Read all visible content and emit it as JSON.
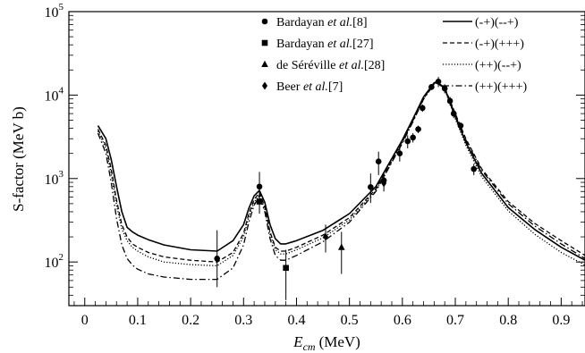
{
  "chart_data": {
    "type": "scatter",
    "xlabel": {
      "var": "E",
      "sub": "cm",
      "unit": "(MeV)"
    },
    "ylabel": "S-factor (MeV b)",
    "xlim": [
      -0.03,
      0.945
    ],
    "ylim": [
      30,
      100000
    ],
    "yscale": "log",
    "x_ticks": [
      0,
      0.1,
      0.2,
      0.3,
      0.4,
      0.5,
      0.6,
      0.7,
      0.8,
      0.9
    ],
    "x_tick_labels": [
      "0",
      "0.1",
      "0.2",
      "0.3",
      "0.4",
      "0.5",
      "0.6",
      "0.7",
      "0.8",
      "0.9"
    ],
    "y_ticks": [
      100,
      1000,
      10000,
      100000
    ],
    "y_tick_labels": [
      {
        "base": "10",
        "exp": "2"
      },
      {
        "base": "10",
        "exp": "3"
      },
      {
        "base": "10",
        "exp": "4"
      },
      {
        "base": "10",
        "exp": "5"
      }
    ],
    "grid": false,
    "legend_position": "top",
    "data_series": [
      {
        "legend": {
          "pre": "Bardayan ",
          "italic": "et al.",
          "post": "[8]"
        },
        "marker": "circle",
        "points": [
          {
            "x": 0.25,
            "y": 110,
            "ylo": 50,
            "yhi": 240
          },
          {
            "x": 0.33,
            "y": 800,
            "ylo": 520,
            "yhi": 1200
          },
          {
            "x": 0.54,
            "y": 790,
            "ylo": 510,
            "yhi": 1150
          },
          {
            "x": 0.555,
            "y": 1600,
            "ylo": 1100,
            "yhi": 2100
          },
          {
            "x": 0.565,
            "y": 950,
            "ylo": 800,
            "yhi": 1120
          },
          {
            "x": 0.595,
            "y": 2000,
            "ylo": 1600,
            "yhi": 2500
          },
          {
            "x": 0.61,
            "y": 2800,
            "ylo": 2300,
            "yhi": 3300
          },
          {
            "x": 0.62,
            "y": 3100,
            "ylo": 2700,
            "yhi": 3500
          },
          {
            "x": 0.63,
            "y": 3900,
            "ylo": 3500,
            "yhi": 4300
          },
          {
            "x": 0.638,
            "y": 7000,
            "ylo": 6300,
            "yhi": 7700
          },
          {
            "x": 0.655,
            "y": 12500,
            "ylo": 11500,
            "yhi": 13500
          },
          {
            "x": 0.668,
            "y": 14500,
            "ylo": 12500,
            "yhi": 16500
          },
          {
            "x": 0.68,
            "y": 12000,
            "ylo": 10500,
            "yhi": 13500
          },
          {
            "x": 0.69,
            "y": 8500,
            "ylo": 7500,
            "yhi": 9500
          },
          {
            "x": 0.697,
            "y": 6000,
            "ylo": 5300,
            "yhi": 6700
          },
          {
            "x": 0.71,
            "y": 4300,
            "ylo": 3900,
            "yhi": 4700
          },
          {
            "x": 0.735,
            "y": 1300,
            "ylo": 1100,
            "yhi": 1500
          }
        ]
      },
      {
        "legend": {
          "pre": "Bardayan ",
          "italic": "et al.",
          "post": "[27]"
        },
        "marker": "square",
        "points": [
          {
            "x": 0.33,
            "y": 530,
            "ylo": 380,
            "yhi": 690
          },
          {
            "x": 0.38,
            "y": 85,
            "ylo": 35,
            "yhi": 140
          }
        ]
      },
      {
        "legend": {
          "pre": "de Séréville ",
          "italic": "et al.",
          "post": "[28]"
        },
        "marker": "triangle",
        "points": [
          {
            "x": 0.485,
            "y": 150,
            "ylo": 72,
            "yhi": 230
          }
        ]
      },
      {
        "legend": {
          "pre": "Beer ",
          "italic": "et al.",
          "post": "[7]"
        },
        "marker": "diamond",
        "points": [
          {
            "x": 0.455,
            "y": 200,
            "ylo": 130,
            "yhi": 280
          },
          {
            "x": 0.565,
            "y": 880,
            "ylo": 700,
            "yhi": 1050
          }
        ]
      }
    ],
    "curves": [
      {
        "name": "(-+)(--+)",
        "style": "solid",
        "x": [
          0.025,
          0.04,
          0.05,
          0.06,
          0.07,
          0.08,
          0.09,
          0.1,
          0.12,
          0.15,
          0.2,
          0.25,
          0.28,
          0.3,
          0.31,
          0.32,
          0.33,
          0.34,
          0.35,
          0.36,
          0.37,
          0.38,
          0.4,
          0.45,
          0.5,
          0.55,
          0.6,
          0.62,
          0.64,
          0.66,
          0.665,
          0.68,
          0.7,
          0.72,
          0.75,
          0.8,
          0.85,
          0.9,
          0.945
        ],
        "y": [
          4300,
          3000,
          1700,
          800,
          400,
          260,
          230,
          210,
          185,
          160,
          140,
          135,
          180,
          280,
          440,
          620,
          720,
          520,
          280,
          190,
          165,
          165,
          180,
          240,
          380,
          800,
          2900,
          5200,
          9500,
          14000,
          14500,
          12000,
          5500,
          2700,
          1150,
          450,
          245,
          150,
          105
        ]
      },
      {
        "name": "(-+)(+++)",
        "style": "dashed",
        "x": [
          0.025,
          0.04,
          0.05,
          0.06,
          0.07,
          0.08,
          0.09,
          0.1,
          0.12,
          0.15,
          0.2,
          0.25,
          0.28,
          0.3,
          0.31,
          0.32,
          0.33,
          0.34,
          0.35,
          0.36,
          0.37,
          0.38,
          0.4,
          0.45,
          0.5,
          0.55,
          0.6,
          0.62,
          0.64,
          0.66,
          0.665,
          0.68,
          0.7,
          0.72,
          0.75,
          0.8,
          0.85,
          0.9,
          0.945
        ],
        "y": [
          3900,
          2500,
          1300,
          550,
          280,
          200,
          165,
          150,
          130,
          115,
          105,
          100,
          130,
          220,
          380,
          560,
          680,
          460,
          230,
          150,
          135,
          135,
          150,
          210,
          340,
          750,
          2800,
          5000,
          9200,
          13800,
          14300,
          12300,
          6000,
          3000,
          1300,
          530,
          290,
          180,
          120
        ]
      },
      {
        "name": "(++)(--+)",
        "style": "dotted",
        "x": [
          0.025,
          0.04,
          0.05,
          0.06,
          0.07,
          0.08,
          0.09,
          0.1,
          0.12,
          0.15,
          0.2,
          0.25,
          0.28,
          0.3,
          0.31,
          0.32,
          0.33,
          0.34,
          0.35,
          0.36,
          0.37,
          0.38,
          0.4,
          0.45,
          0.5,
          0.55,
          0.6,
          0.62,
          0.64,
          0.66,
          0.665,
          0.68,
          0.7,
          0.72,
          0.75,
          0.8,
          0.85,
          0.9,
          0.945
        ],
        "y": [
          3700,
          2300,
          1150,
          480,
          250,
          180,
          150,
          135,
          115,
          100,
          93,
          90,
          120,
          200,
          350,
          520,
          640,
          430,
          215,
          140,
          125,
          125,
          140,
          195,
          320,
          720,
          2700,
          4900,
          9000,
          13600,
          14100,
          11700,
          5200,
          2500,
          1050,
          410,
          215,
          130,
          92
        ]
      },
      {
        "name": "(++)(+++)",
        "style": "dashdot",
        "x": [
          0.025,
          0.04,
          0.05,
          0.06,
          0.07,
          0.08,
          0.09,
          0.1,
          0.12,
          0.15,
          0.2,
          0.25,
          0.28,
          0.3,
          0.31,
          0.32,
          0.33,
          0.34,
          0.35,
          0.36,
          0.37,
          0.38,
          0.4,
          0.45,
          0.5,
          0.55,
          0.6,
          0.62,
          0.64,
          0.66,
          0.665,
          0.68,
          0.7,
          0.72,
          0.75,
          0.8,
          0.85,
          0.9,
          0.945
        ],
        "y": [
          3500,
          2000,
          900,
          330,
          160,
          110,
          92,
          82,
          72,
          66,
          62,
          62,
          85,
          160,
          300,
          480,
          610,
          400,
          190,
          120,
          105,
          105,
          120,
          175,
          300,
          700,
          2650,
          4800,
          8900,
          13500,
          14000,
          12100,
          5800,
          2900,
          1250,
          500,
          270,
          165,
          110
        ]
      }
    ]
  }
}
